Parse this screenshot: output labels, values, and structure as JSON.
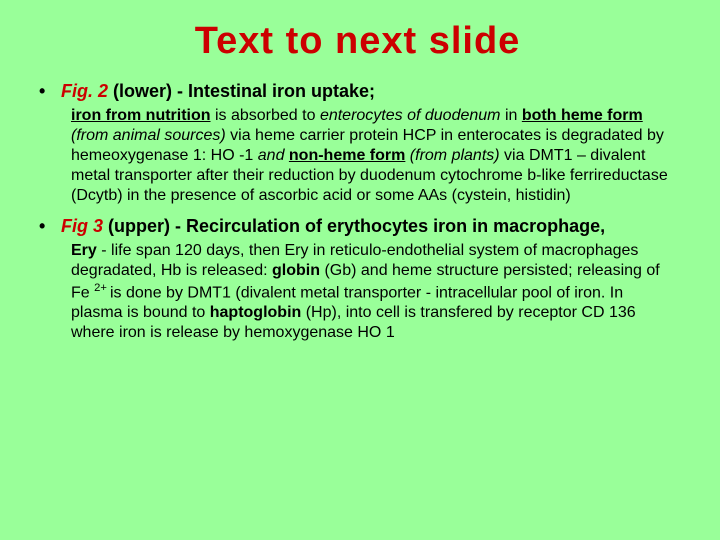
{
  "colors": {
    "background": "#99ff99",
    "title": "#cc0000",
    "text": "#000000"
  },
  "typography": {
    "title_fontsize": 38,
    "bullet_fontsize": 18,
    "para_fontsize": 16,
    "font_family": "Arial"
  },
  "title": "Text  to  next   slide",
  "b1_fig": "Fig. 2",
  "b1_rest": " (lower)  -   Intestinal iron uptake;",
  "p1_iron_nutrition": "iron from nutrition",
  "p1_absorbed_to": " is absorbed to ",
  "p1_enterocytes_duo": "enterocytes of duodenum",
  "p1_in": " in ",
  "p1_both_heme": "both heme  form",
  "p1_from_animal": " (from animal sources)",
  "p1_via_hcp": " via   heme carrier protein HCP in enterocates is degradated by hemeoxygenase 1: HO -1    ",
  "p1_and": "and  ",
  "p1_nonheme": "non-heme form",
  "p1_from_plants": " (from plants)",
  "p1_dmt1_rest": "  via DMT1 – divalent metal transporter after  their reduction by duodenum cytochrome b-like ferrireductase (Dcytb) in the presence of ascorbic acid or  some AAs (cystein, histidin)",
  "b2_fig": "Fig 3",
  "b2_upper": " (upper)  ",
  "b2_recirc": "- Recirculation of erythocytes iron in  macrophage,",
  "p2_ery": "Ery",
  "p2_life": " - life span  120 days,  then  Ery   in reticulo-endothelial system  of  macrophages degradated,  Hb is released: ",
  "p2_globin": "globin",
  "p2_gb_heme": " (Gb)  and heme structure persisted;  releasing of  Fe ",
  "p2_2plus": "2+ ",
  "p2_dmt1": "is done by DMT1 (divalent metal transporter - intracellular pool of iron. In plasma is bound to ",
  "p2_hapto": "haptoglobin",
  "p2_hp_rest": " (Hp),  into cell is transfered by receptor CD 136  where iron is release by hemoxygenase HO 1"
}
